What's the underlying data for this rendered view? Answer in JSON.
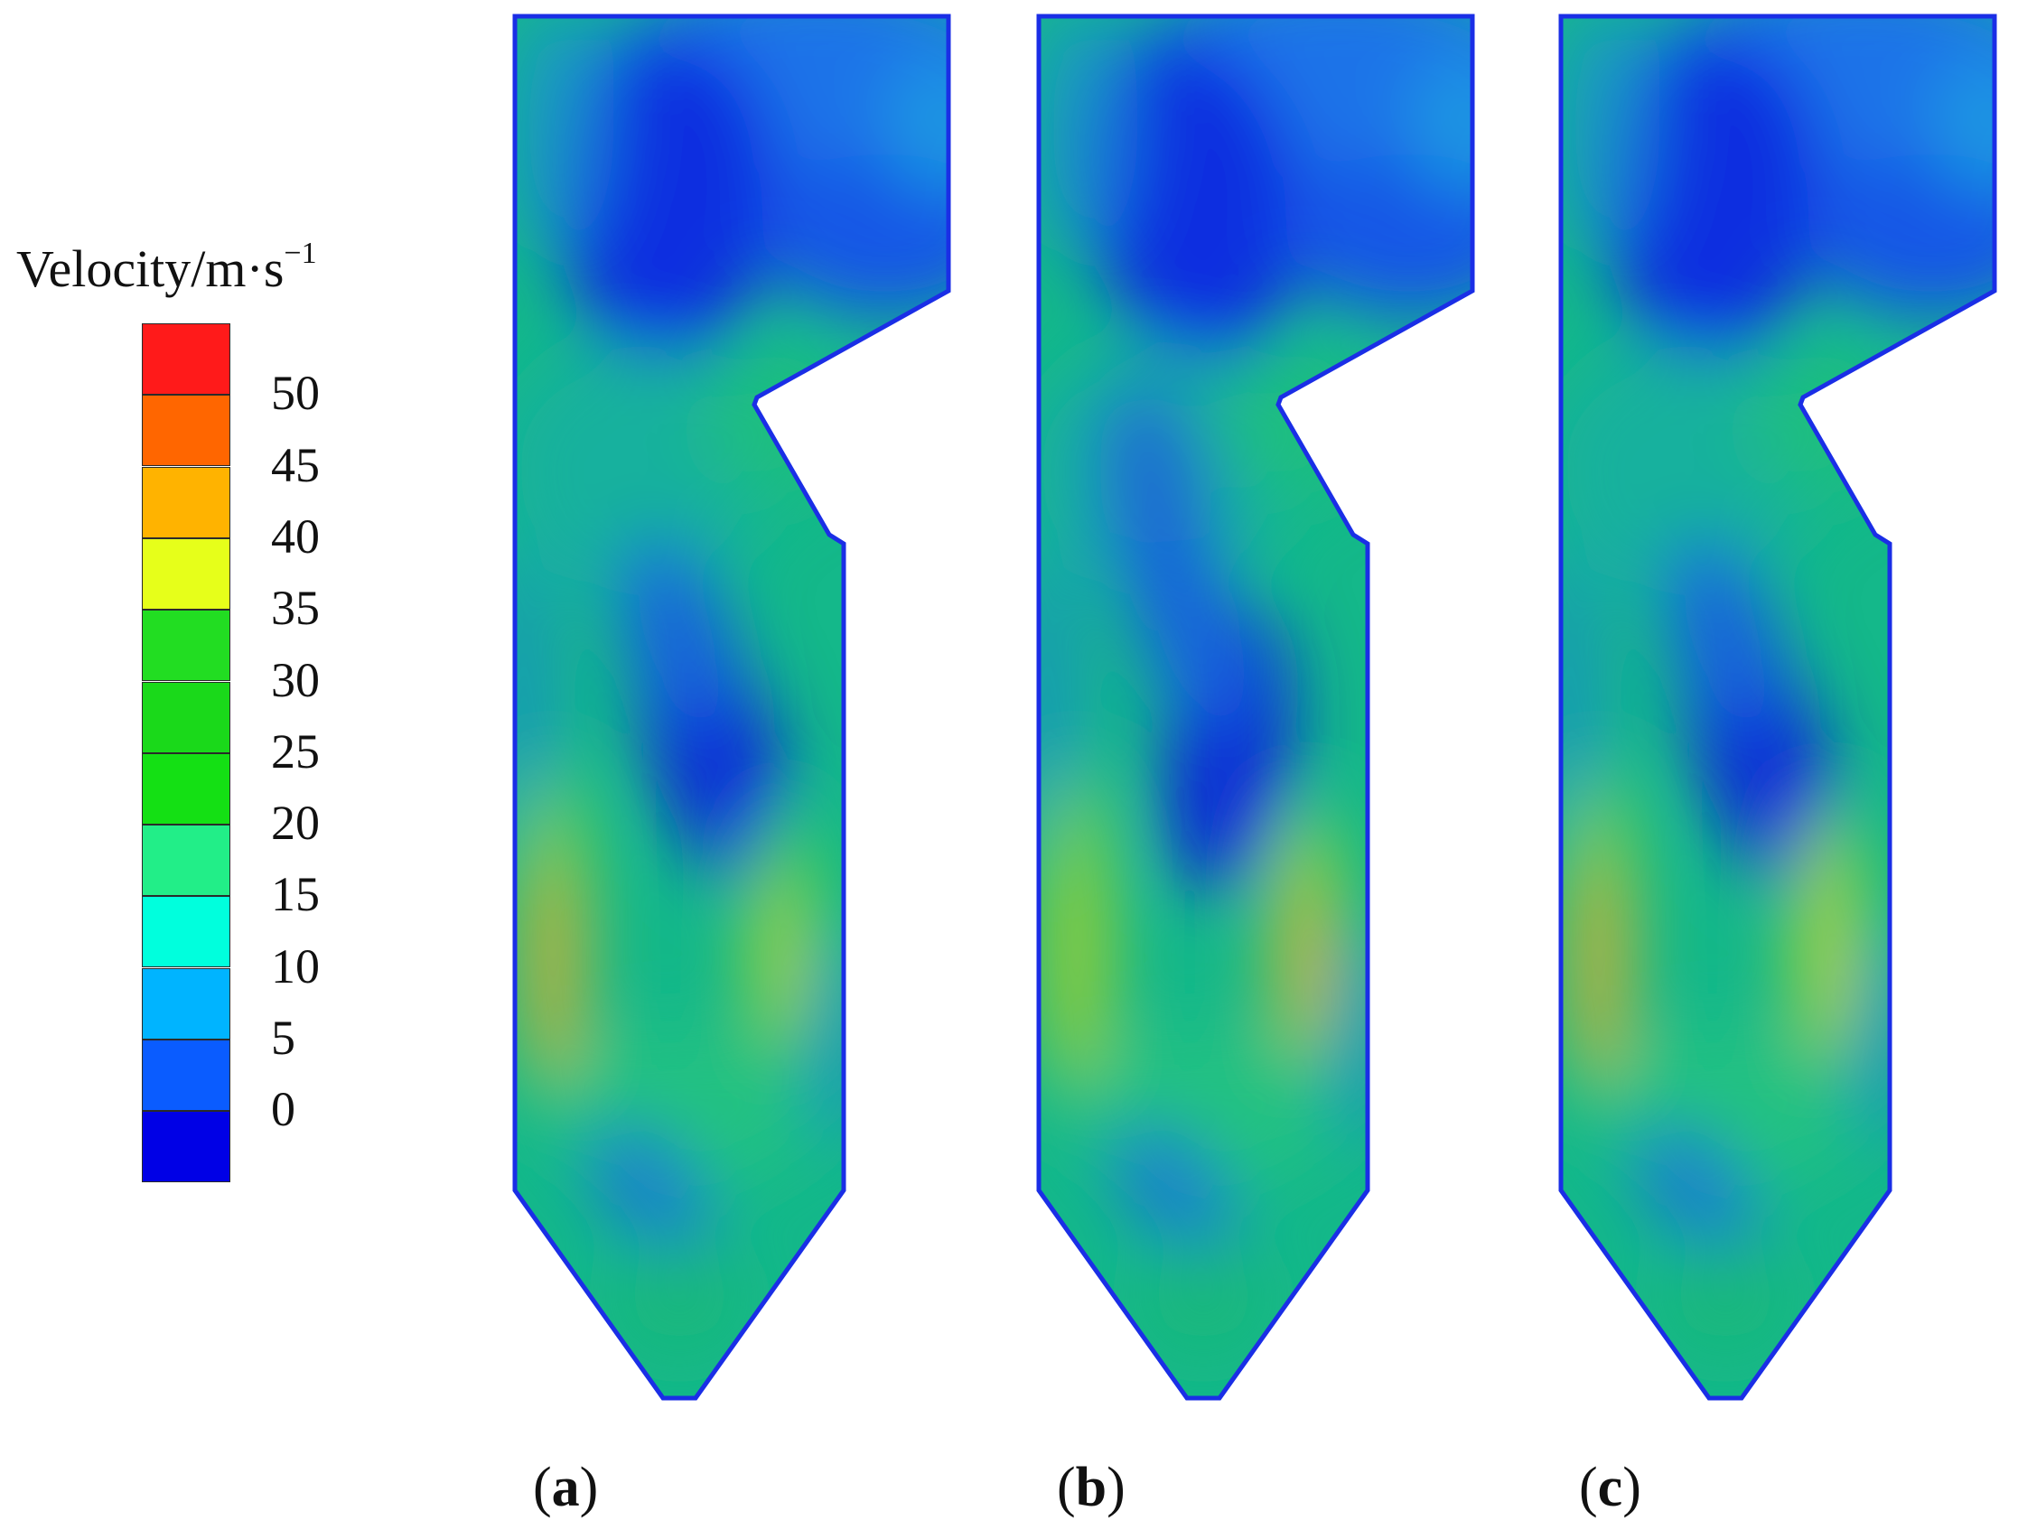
{
  "legend": {
    "title": "Velocity/m·s",
    "title_exponent": "−1",
    "ticks": [
      "50",
      "45",
      "40",
      "35",
      "30",
      "25",
      "20",
      "15",
      "10",
      "5",
      "0"
    ],
    "colors_top_to_bottom": [
      "#ff1a1a",
      "#ff6600",
      "#ffb300",
      "#e6ff1a",
      "#22dd22",
      "#1ad91a",
      "#14e014",
      "#22ee88",
      "#00ffdd",
      "#00b4ff",
      "#0a5cff",
      "#0000e6"
    ]
  },
  "panels": [
    {
      "id": "a",
      "label": "a"
    },
    {
      "id": "b",
      "label": "b"
    },
    {
      "id": "c",
      "label": "c"
    }
  ]
}
